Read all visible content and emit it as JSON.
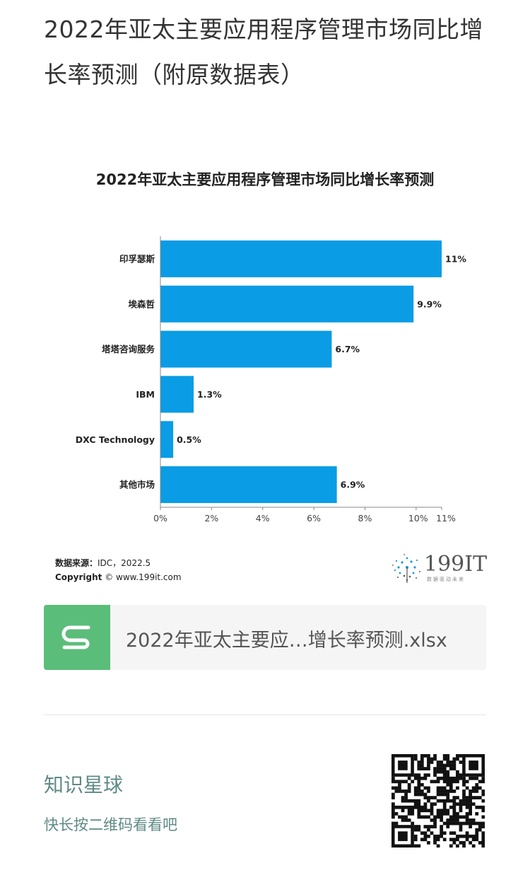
{
  "article": {
    "title": "2022年亚太主要应用程序管理市场同比增长率预测（附原数据表）"
  },
  "chart_data": {
    "type": "bar",
    "orientation": "horizontal",
    "title": "2022年亚太主要应用程序管理市场同比增长率预测",
    "categories": [
      "印孚瑟斯",
      "埃森哲",
      "塔塔咨询服务",
      "IBM",
      "DXC Technology",
      "其他市场"
    ],
    "values": [
      11,
      9.9,
      6.7,
      1.3,
      0.5,
      6.9
    ],
    "value_labels": [
      "11%",
      "9.9%",
      "6.7%",
      "1.3%",
      "0.5%",
      "6.9%"
    ],
    "x_ticks": [
      0,
      2,
      4,
      6,
      8,
      10,
      11
    ],
    "x_tick_labels": [
      "0%",
      "2%",
      "4%",
      "6%",
      "8%",
      "10%",
      "11%"
    ],
    "xlim": [
      0,
      11
    ],
    "bar_color": "#0a9ce4",
    "grid": false,
    "legend": "none"
  },
  "source": {
    "label": "数据来源：",
    "value": "IDC，2022.5",
    "copyright_label": "Copyright",
    "copyright_value": "© www.199it.com"
  },
  "logo": {
    "text": "199IT",
    "tagline": "数据驱动未来"
  },
  "file": {
    "name": "2022年亚太主要应…增长率预测.xlsx",
    "icon": "spreadsheet-s-icon",
    "icon_color": "#5bbd7a"
  },
  "planet": {
    "title": "知识星球",
    "subtitle": "快长按二维码看看吧"
  }
}
